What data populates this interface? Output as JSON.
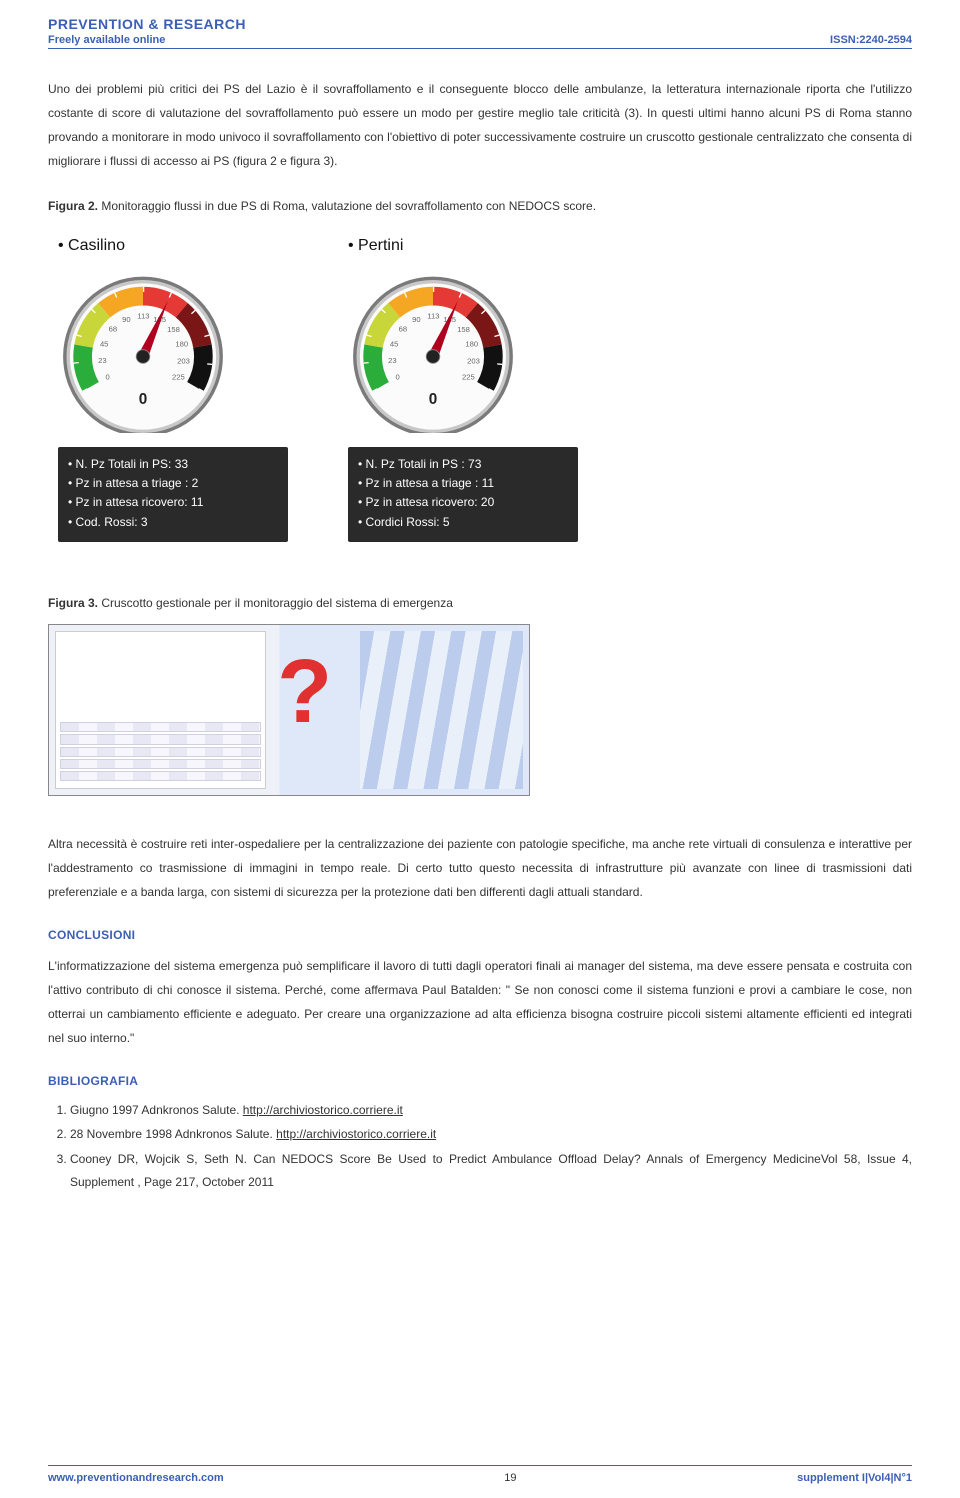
{
  "header": {
    "logo_line1": "PREVENTION & RESEARCH",
    "logo_line2": "Freely available online",
    "issn": "ISSN:2240-2594"
  },
  "para1": "Uno dei problemi più critici dei PS del Lazio è il sovraffollamento e il conseguente blocco delle ambulanze, la letteratura internazionale riporta che l'utilizzo costante di score di valutazione del sovraffollamento può essere un modo per gestire meglio tale criticità (3). In questi ultimi hanno alcuni PS di Roma stanno provando a monitorare in modo univoco il sovraffollamento con l'obiettivo di poter successivamente costruire un cruscotto gestionale centralizzato che consenta di migliorare i flussi di accesso ai PS (figura 2 e figura 3).",
  "fig2": {
    "caption_bold": "Figura 2.",
    "caption_rest": " Monitoraggio flussi in due PS di Roma, valutazione del sovraffollamento con NEDOCS score.",
    "gauge_ticks": [
      "0",
      "23",
      "45",
      "68",
      "90",
      "113",
      "135",
      "158",
      "180",
      "203",
      "225"
    ],
    "gauge_colors": {
      "zone1": "#2aad3a",
      "zone2": "#c9d63a",
      "zone3": "#f5a623",
      "zone4": "#e53935",
      "zone5": "#7a1615",
      "zone6": "#111111",
      "face": "#fbfbfb",
      "rim_outer": "#7a7a7a",
      "rim_inner": "#c8c8c8",
      "needle": "#b00020",
      "tick_text": "#666666"
    },
    "panels": [
      {
        "title": "Casilino",
        "needle_value": 135,
        "stats": [
          "N. Pz Totali in PS: 33",
          "Pz in attesa a triage : 2",
          "Pz in attesa ricovero: 11",
          "Cod. Rossi: 3"
        ]
      },
      {
        "title": "Pertini",
        "needle_value": 135,
        "stats": [
          "N. Pz Totali in PS : 73",
          "Pz in attesa a triage : 11",
          "Pz in attesa ricovero: 20",
          "Cordici Rossi: 5"
        ]
      }
    ]
  },
  "fig3": {
    "caption_bold": "Figura 3.",
    "caption_rest": " Cruscotto gestionale per il monitoraggio del sistema di emergenza"
  },
  "para2": "Altra necessità è costruire reti inter-ospedaliere per la centralizzazione dei paziente con patologie specifiche, ma anche rete virtuali di consulenza e interattive per l'addestramento co trasmissione di immagini in tempo reale. Di certo tutto questo necessita di infrastrutture più avanzate con linee di trasmissioni dati preferenziale e a banda larga, con sistemi di sicurezza per la protezione dati ben differenti dagli attuali standard.",
  "conclusioni": {
    "title": "CONCLUSIONI",
    "text": "L'informatizzazione del sistema emergenza può semplificare il lavoro di tutti dagli operatori finali ai manager del sistema, ma deve essere pensata e costruita con l'attivo contributo di chi conosce il sistema. Perché, come affermava Paul Batalden: \" Se non conosci come il sistema funzioni e provi a cambiare le cose, non otterrai un cambiamento efficiente e adeguato. Per creare una organizzazione ad alta efficienza bisogna costruire piccoli sistemi altamente efficienti ed integrati nel suo interno.\""
  },
  "biblio": {
    "title": "BIBLIOGRAFIA",
    "items": [
      {
        "text_a": "Giugno 1997 Adnkronos Salute. ",
        "link": "http://archiviostorico.corriere.it",
        "text_b": ""
      },
      {
        "text_a": "28 Novembre 1998 Adnkronos Salute. ",
        "link": "http://archiviostorico.corriere.it",
        "text_b": ""
      },
      {
        "text_a": "Cooney DR, Wojcik S, Seth N. Can NEDOCS Score Be Used to Predict Ambulance Offload Delay? Annals of Emergency MedicineVol 58, Issue 4, Supplement , Page 217, October 2011",
        "link": "",
        "text_b": ""
      }
    ]
  },
  "footer": {
    "left": "www.preventionandresearch.com",
    "page": "19",
    "right": "supplement I|Vol4|N°1"
  }
}
